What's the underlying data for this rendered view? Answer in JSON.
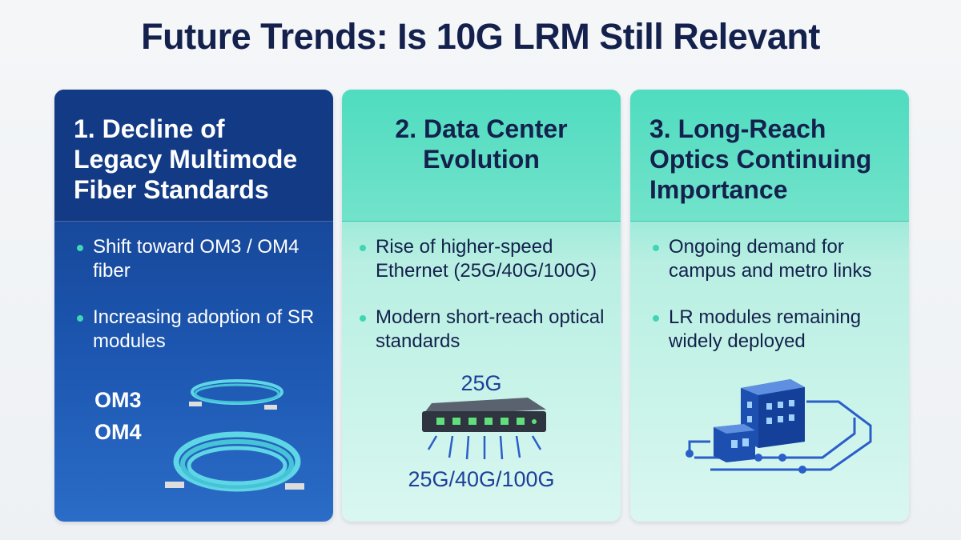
{
  "title": "Future Trends: Is 10G LRM Still Relevant",
  "cards": [
    {
      "heading": "1. Decline of Legacy Multimode Fiber Standards",
      "bullets": [
        "Shift toward OM3 / OM4 fiber",
        "Increasing adoption of SR modules"
      ],
      "labels": [
        "OM3",
        "OM4"
      ]
    },
    {
      "heading": "2. Data Center Evolution",
      "bullets": [
        "Rise of higher-speed Ethernet (25G/40G/100G)",
        "Modern short-reach optical standards"
      ],
      "labels": [
        "25G",
        "25G/40G/100G"
      ]
    },
    {
      "heading": "3. Long-Reach Optics Continuing Importance",
      "bullets": [
        "Ongoing demand for campus and metro links",
        "LR modules remaining widely deployed"
      ]
    }
  ]
}
